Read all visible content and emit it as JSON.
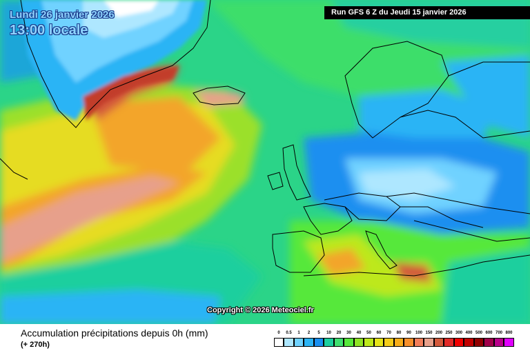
{
  "header": {
    "date_line": "Lundi 26 janvier 2026",
    "time_line": "13:00 locale",
    "run_label": "Run GFS 6 Z du Jeudi 15 janvier 2026"
  },
  "map": {
    "copyright": "Copyright © 2026 Meteociel.fr"
  },
  "footer": {
    "title": "Accumulation précipitations depuis 0h (mm)",
    "subtitle": "(+ 270h)"
  },
  "legend": {
    "labels": [
      "0",
      "0.5",
      "1",
      "2",
      "5",
      "10",
      "20",
      "30",
      "40",
      "50",
      "60",
      "70",
      "80",
      "90",
      "100",
      "150",
      "200",
      "250",
      "300",
      "400",
      "500",
      "600",
      "700",
      "800"
    ],
    "colors": [
      "#ffffff",
      "#aee7ff",
      "#6fd2ff",
      "#2cb4f5",
      "#1a8ff0",
      "#1ccf9e",
      "#3fe070",
      "#56e83a",
      "#8fe324",
      "#bde81a",
      "#e6e41a",
      "#f4cc1a",
      "#f7ad1a",
      "#f78f2b",
      "#f37e5a",
      "#e7a08b",
      "#d3593b",
      "#e12a28",
      "#f00000",
      "#c00000",
      "#900000",
      "#a0004a",
      "#b8008b",
      "#e000ff"
    ]
  }
}
